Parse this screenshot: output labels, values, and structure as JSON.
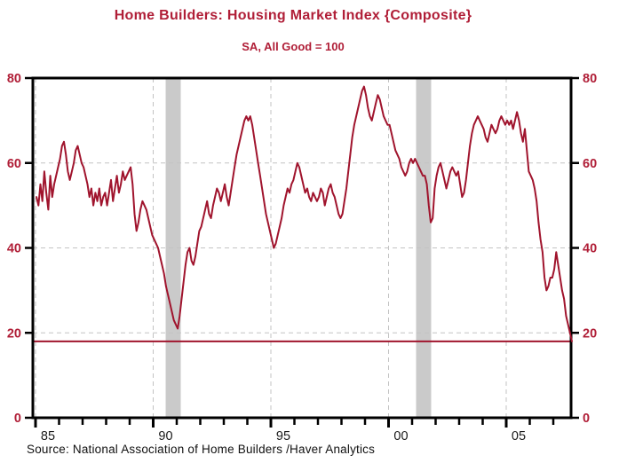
{
  "header": {
    "title": "Home Builders: Housing Market Index  {Composite}",
    "subtitle": "SA, All Good = 100"
  },
  "footer": {
    "source": "Source:  National Association of Home Builders /Haver Analytics"
  },
  "chart_data": {
    "type": "line",
    "title": "Home Builders: Housing Market Index  {Composite}",
    "subtitle": "SA, All Good = 100",
    "source": "Source:  National Association of Home Builders /Haver Analytics",
    "frequency": "monthly",
    "start_year": 1985,
    "values": [
      52,
      50,
      55,
      51,
      58,
      53,
      49,
      57,
      52,
      55,
      57,
      59,
      61,
      64,
      65,
      62,
      58,
      56,
      58,
      60,
      63,
      64,
      62,
      60,
      59,
      57,
      55,
      52,
      54,
      50,
      53,
      51,
      54,
      50,
      52,
      53,
      50,
      53,
      56,
      51,
      54,
      57,
      53,
      55,
      58,
      56,
      57,
      58,
      59,
      55,
      48,
      44,
      46,
      49,
      51,
      50,
      49,
      47,
      45,
      43,
      42,
      41,
      40,
      38,
      36,
      34,
      31,
      29,
      27,
      25,
      23,
      22,
      21,
      24,
      28,
      32,
      36,
      39,
      40,
      37,
      36,
      38,
      41,
      44,
      45,
      47,
      49,
      51,
      48,
      47,
      50,
      52,
      54,
      53,
      51,
      53,
      55,
      52,
      50,
      53,
      56,
      59,
      62,
      64,
      66,
      68,
      70,
      71,
      70,
      71,
      69,
      66,
      63,
      60,
      57,
      54,
      51,
      48,
      46,
      44,
      42,
      40,
      41,
      43,
      45,
      47,
      50,
      52,
      54,
      53,
      55,
      56,
      58,
      60,
      59,
      57,
      55,
      53,
      54,
      52,
      51,
      53,
      52,
      51,
      52,
      54,
      53,
      50,
      52,
      54,
      55,
      53,
      52,
      50,
      48,
      47,
      48,
      51,
      54,
      58,
      62,
      66,
      69,
      71,
      73,
      75,
      77,
      78,
      76,
      73,
      71,
      70,
      72,
      74,
      76,
      75,
      73,
      71,
      70,
      69,
      69,
      67,
      65,
      63,
      62,
      61,
      59,
      58,
      57,
      58,
      60,
      61,
      60,
      61,
      60,
      59,
      58,
      57,
      57,
      55,
      50,
      46,
      47,
      54,
      57,
      59,
      60,
      58,
      56,
      54,
      56,
      58,
      59,
      58,
      57,
      58,
      55,
      52,
      53,
      56,
      60,
      64,
      67,
      69,
      70,
      71,
      70,
      69,
      68,
      66,
      65,
      67,
      69,
      68,
      67,
      68,
      70,
      71,
      70,
      69,
      70,
      69,
      70,
      68,
      70,
      72,
      70,
      67,
      65,
      68,
      63,
      58,
      57,
      56,
      54,
      51,
      46,
      42,
      39,
      33,
      30,
      31,
      33,
      33,
      35,
      39,
      36,
      33,
      30,
      28,
      24,
      22,
      20,
      18
    ],
    "ylim": [
      0,
      80
    ],
    "yticks": [
      0,
      20,
      40,
      60,
      80
    ],
    "xticks_major": [
      {
        "year": 1985,
        "label": "85"
      },
      {
        "year": 1990,
        "label": "90"
      },
      {
        "year": 1995,
        "label": "95"
      },
      {
        "year": 2000,
        "label": "00"
      },
      {
        "year": 2005,
        "label": "05"
      }
    ],
    "minor_tick_years": [
      1985,
      2007
    ],
    "xlim": [
      1984.89,
      2007.85
    ],
    "reference_line": 18,
    "recession_bands": [
      [
        1990.53,
        1991.17
      ],
      [
        2001.17,
        2001.81
      ]
    ],
    "grid": "dashed",
    "legend": "none",
    "colors": {
      "line": "#a0142d",
      "reference_line": "#a0142d",
      "axis_labels_y": "#b01e37",
      "axis_labels_x": "#1a1a1a",
      "frame": "#000000",
      "gridline": "#c3c3c3",
      "recession_band": "#cacaca",
      "background": "#ffffff"
    }
  }
}
